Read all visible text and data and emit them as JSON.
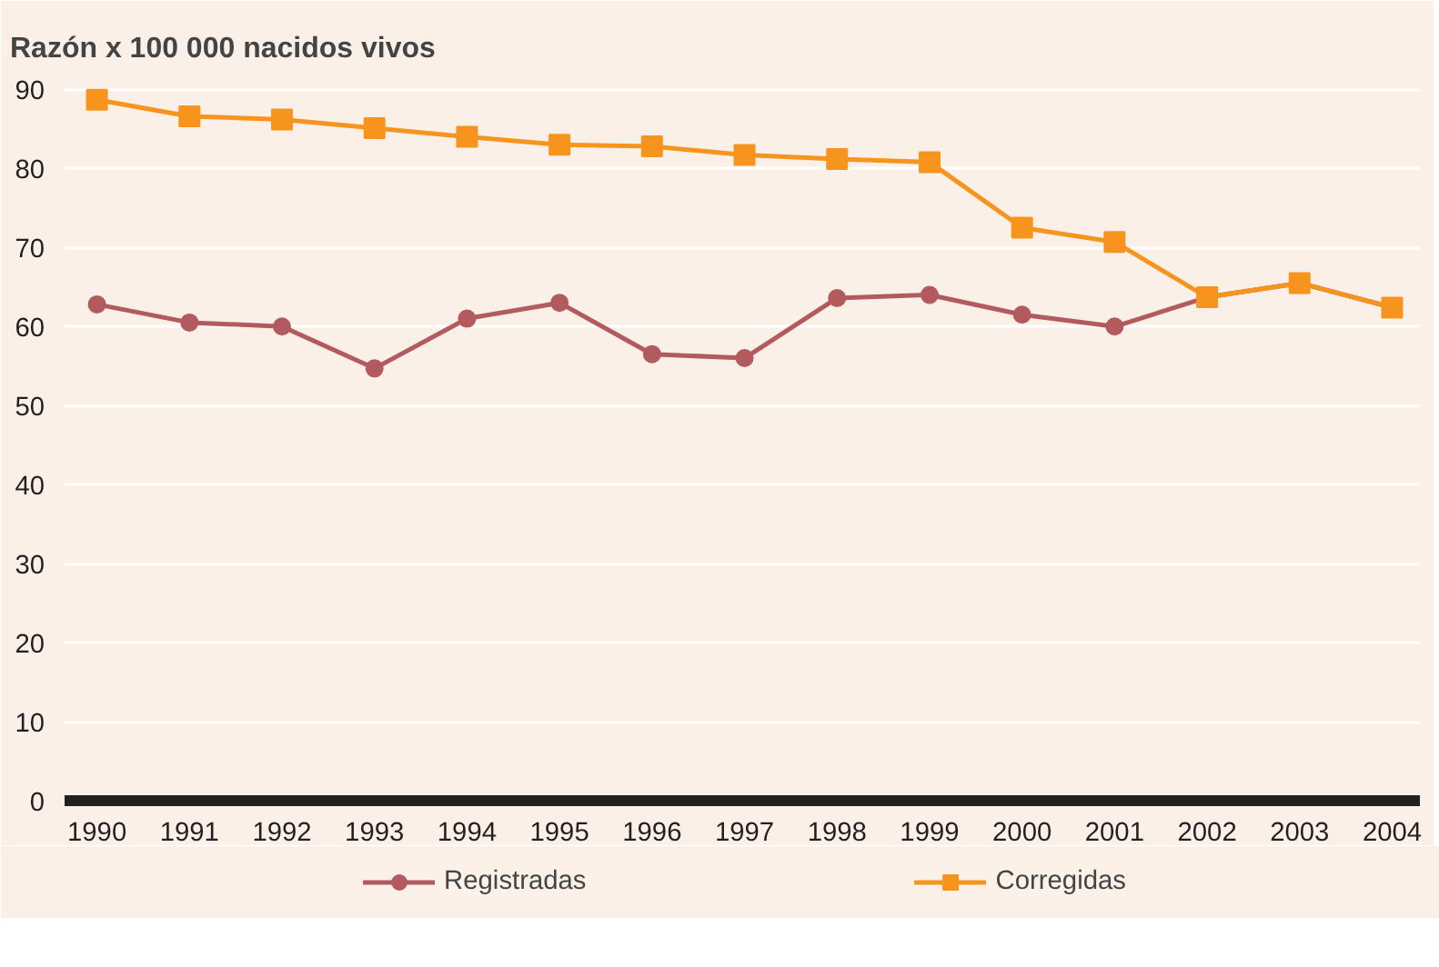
{
  "chart_data": {
    "type": "line",
    "title": "Razón x 100 000 nacidos vivos",
    "categories": [
      "1990",
      "1991",
      "1992",
      "1993",
      "1994",
      "1995",
      "1996",
      "1997",
      "1998",
      "1999",
      "2000",
      "2001",
      "2002",
      "2003",
      "2004"
    ],
    "series": [
      {
        "name": "Registradas",
        "color": "#b35a5f",
        "marker": "circle",
        "values": [
          62.8,
          60.5,
          60.0,
          54.7,
          61.0,
          63.0,
          56.5,
          56.0,
          63.6,
          64.0,
          61.5,
          60.0,
          63.7,
          65.5,
          62.4
        ]
      },
      {
        "name": "Corregidas",
        "color": "#f7941d",
        "marker": "square",
        "values": [
          88.7,
          86.6,
          86.2,
          85.1,
          84.0,
          83.0,
          82.8,
          81.7,
          81.2,
          80.8,
          72.5,
          70.7,
          63.7,
          65.5,
          62.4
        ]
      }
    ],
    "ylim": [
      0,
      92
    ],
    "yticks": [
      0,
      10,
      20,
      30,
      40,
      50,
      60,
      70,
      80,
      90
    ],
    "grid": "y",
    "legend": "bottom",
    "line_style": "solid"
  }
}
